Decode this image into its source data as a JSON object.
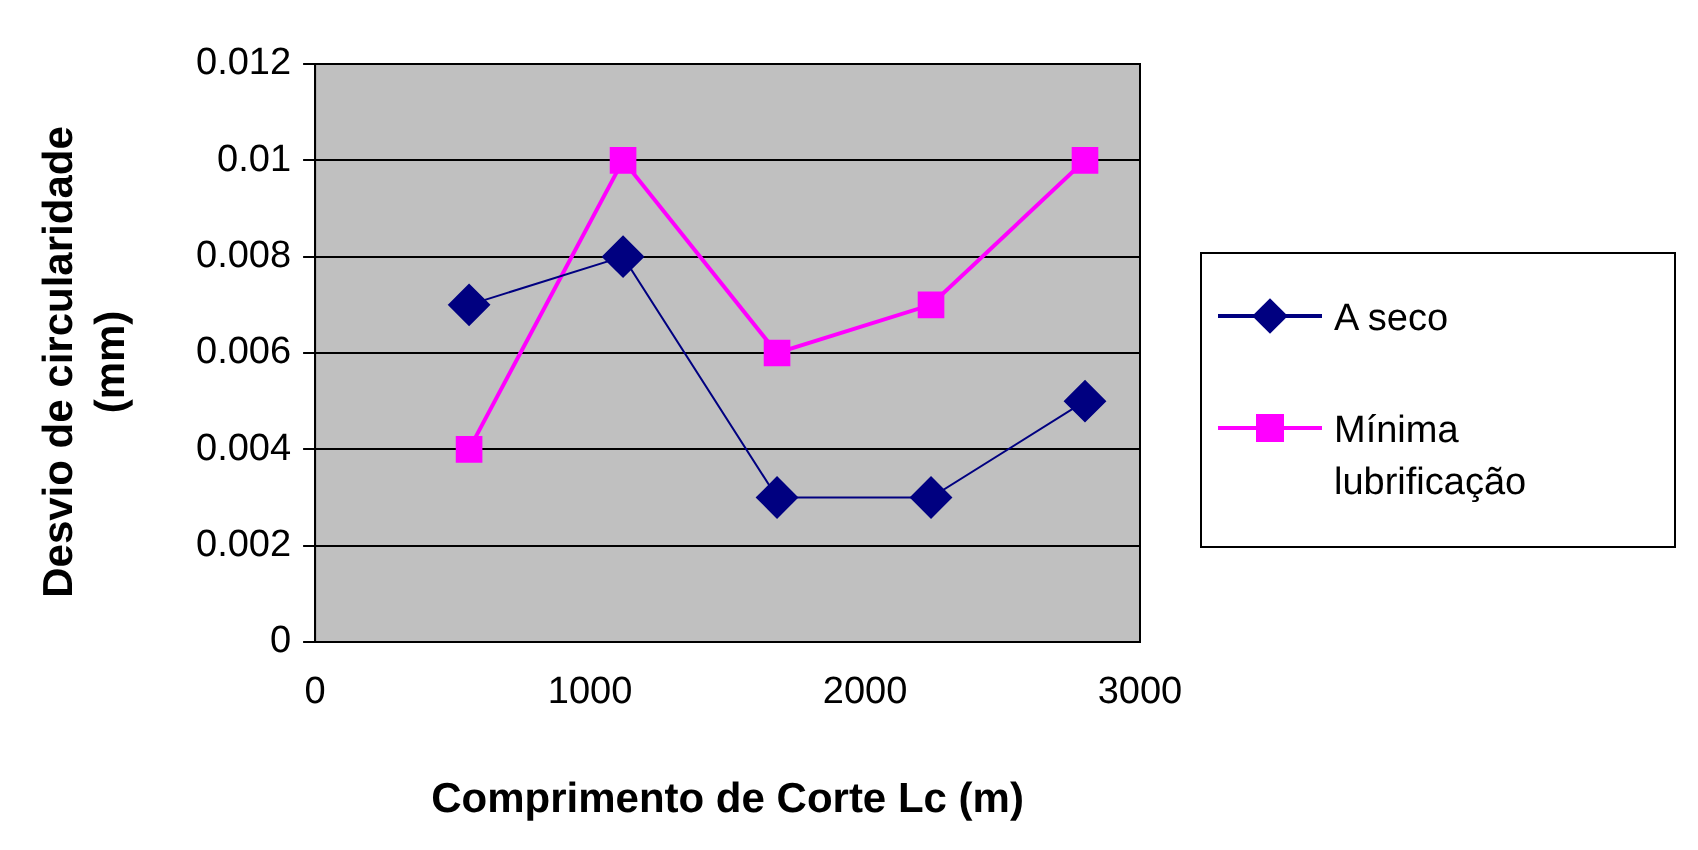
{
  "chart_data": {
    "type": "line",
    "xlabel": "Comprimento de Corte Lc (m)",
    "ylabel": "Desvio de circularidade (mm)",
    "x": [
      560,
      1120,
      1680,
      2240,
      2800
    ],
    "series": [
      {
        "name": "A seco",
        "color": "#000080",
        "marker": "diamond",
        "values": [
          0.007,
          0.008,
          0.003,
          0.003,
          0.005
        ]
      },
      {
        "name": "Mínima lubrificação",
        "color": "#ff00ff",
        "marker": "square",
        "values": [
          0.004,
          0.01,
          0.006,
          0.007,
          0.01
        ]
      }
    ],
    "xlim": [
      0,
      3000
    ],
    "xticks": [
      0,
      1000,
      2000,
      3000
    ],
    "ylim": [
      0,
      0.012
    ],
    "yticks": [
      0,
      0.002,
      0.004,
      0.006,
      0.008,
      0.01,
      0.012
    ],
    "grid": "y",
    "legend": "right"
  }
}
